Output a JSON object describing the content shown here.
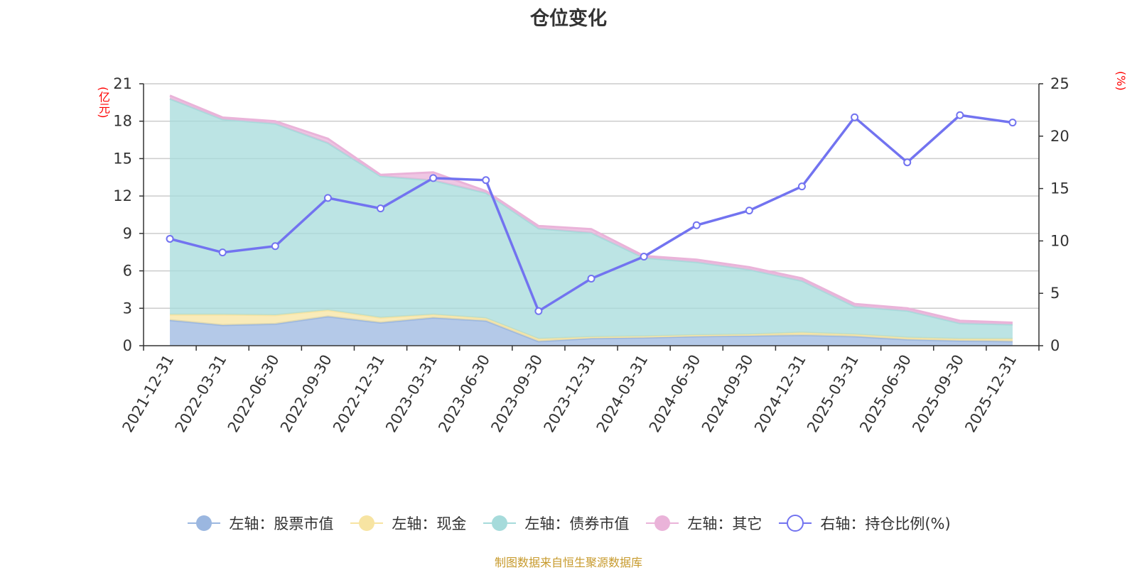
{
  "chart_data": {
    "type": "area",
    "title": "仓位变化",
    "categories": [
      "2021-12-31",
      "2022-03-31",
      "2022-06-30",
      "2022-09-30",
      "2022-12-31",
      "2023-03-31",
      "2023-06-30",
      "2023-09-30",
      "2023-12-31",
      "2024-03-31",
      "2024-06-30",
      "2024-09-30",
      "2024-12-31",
      "2025-03-31",
      "2025-06-30",
      "2025-09-30",
      "2025-12-31"
    ],
    "left_axis": {
      "unit": "(亿元)",
      "ylim": [
        0,
        21
      ],
      "ticks": [
        "0",
        "3",
        "6",
        "9",
        "12",
        "15",
        "18",
        "21"
      ]
    },
    "right_axis": {
      "unit": "(%)",
      "ylim": [
        0,
        25
      ],
      "ticks": [
        "0",
        "5",
        "10",
        "15",
        "20",
        "25"
      ]
    },
    "series": [
      {
        "name": "左轴：股票市值",
        "axis": "left",
        "kind": "stacked-area",
        "color": "#9bb7e0",
        "values": [
          2.05,
          1.65,
          1.75,
          2.35,
          1.85,
          2.25,
          2.0,
          0.35,
          0.6,
          0.65,
          0.75,
          0.8,
          0.85,
          0.75,
          0.5,
          0.4,
          0.35
        ]
      },
      {
        "name": "左轴：现金",
        "axis": "left",
        "kind": "stacked-area",
        "color": "#f7e4a2",
        "values": [
          0.45,
          0.85,
          0.7,
          0.5,
          0.4,
          0.25,
          0.2,
          0.2,
          0.1,
          0.1,
          0.1,
          0.1,
          0.2,
          0.15,
          0.15,
          0.15,
          0.2
        ]
      },
      {
        "name": "左轴：债券市值",
        "axis": "left",
        "kind": "stacked-area",
        "color": "#a6dbdb",
        "values": [
          17.3,
          15.65,
          15.35,
          13.4,
          11.35,
          10.75,
          10.05,
          8.85,
          8.35,
          6.3,
          5.85,
          5.2,
          4.15,
          2.25,
          2.15,
          1.25,
          1.15
        ]
      },
      {
        "name": "左轴：其它",
        "axis": "left",
        "kind": "stacked-area",
        "color": "#eab3d9",
        "values": [
          0.25,
          0.15,
          0.2,
          0.35,
          0.1,
          0.65,
          0.15,
          0.2,
          0.3,
          0.15,
          0.2,
          0.2,
          0.2,
          0.2,
          0.2,
          0.2,
          0.15
        ]
      },
      {
        "name": "右轴：持仓比例(%)",
        "axis": "right",
        "kind": "line",
        "color": "#7273f0",
        "values": [
          10.2,
          8.9,
          9.5,
          14.1,
          13.1,
          16.0,
          15.8,
          3.3,
          6.4,
          8.5,
          11.5,
          12.9,
          15.2,
          21.8,
          17.5,
          22.0,
          21.3
        ]
      }
    ]
  },
  "legend": [
    "左轴：股票市值",
    "左轴：现金",
    "左轴：债券市值",
    "左轴：其它",
    "右轴：持仓比例(%)"
  ],
  "source_note": "制图数据来自恒生聚源数据库"
}
